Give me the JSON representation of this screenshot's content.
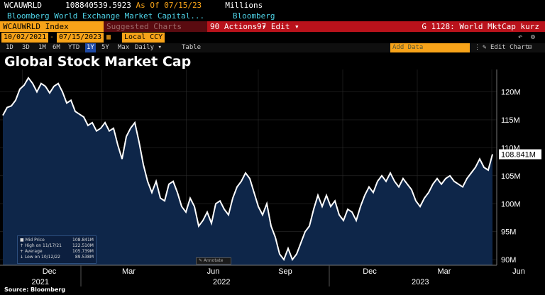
{
  "header": {
    "ticker": "WCAUWRLD",
    "price": "108840539.5923",
    "as_of_label": "As Of",
    "as_of_date": "07/15/23",
    "unit": "Millions",
    "description": "Bloomberg World Exchange Market Capital...",
    "source": "Bloomberg"
  },
  "toolbar": {
    "security": "WCAUWRLD Index",
    "suggested": "Suggested Charts",
    "actions": "90 Actions ▾",
    "edit": "97 Edit ▾",
    "function": "G 1128: World MktCap kurz",
    "start_date": "10/02/2021",
    "end_date": "07/15/2023",
    "currency": "Local CCY",
    "ranges": [
      "1D",
      "3D",
      "1M",
      "6M",
      "YTD",
      "1Y",
      "5Y",
      "Max"
    ],
    "selected_range": "1Y",
    "frequency": "Daily ▾",
    "table": "Table",
    "add_data": "Add Data",
    "edit_chart": "Edit Chart"
  },
  "title": "Global Stock Market Cap",
  "source_note": "Source: Bloomberg",
  "legend": {
    "mid_price_label": "Mid Price",
    "mid_price": "108.841M",
    "high_label": "High on 11/17/21",
    "high": "122.510M",
    "avg_label": "Average",
    "avg": "105.739M",
    "low_label": "Low on 10/12/22",
    "low": "89.538M"
  },
  "annotate": "Annotate",
  "colors": {
    "area": "#0e2649",
    "line": "#ffffff",
    "accent": "#f7a319",
    "grid": "#333333"
  },
  "chart_data": {
    "type": "area",
    "ylim": [
      89,
      124
    ],
    "yticks": [
      "120M",
      "115M",
      "110M",
      "105M",
      "100M",
      "95M",
      "90M"
    ],
    "ytick_values": [
      120,
      115,
      110,
      105,
      100,
      95,
      90
    ],
    "last_label": "108.841M",
    "last_value": 108.841,
    "xticks": [
      "Dec",
      "Mar",
      "Jun",
      "Sep",
      "Dec",
      "Mar",
      "Jun"
    ],
    "xtick_t": [
      0.045,
      0.205,
      0.375,
      0.52,
      0.69,
      0.84,
      0.99
    ],
    "year_labels": [
      "2021",
      "2022",
      "2023"
    ],
    "year_t": [
      0.035,
      0.4,
      0.8
    ],
    "series": [
      {
        "values": [
          115.8,
          117.2,
          117.5,
          118.5,
          120.5,
          121.2,
          122.5,
          121.5,
          120.0,
          121.5,
          121.0,
          119.8,
          121.0,
          121.5,
          120.0,
          118.0,
          118.5,
          116.5,
          116.0,
          115.5,
          114.0,
          114.5,
          113.0,
          113.5,
          114.5,
          113.0,
          113.5,
          110.5,
          108.0,
          112.0,
          113.5,
          114.5,
          111.0,
          107.0,
          104.0,
          102.0,
          104.0,
          101.0,
          100.5,
          103.5,
          104.0,
          102.0,
          99.5,
          98.5,
          101.0,
          99.5,
          96.0,
          97.0,
          98.5,
          96.5,
          100.0,
          100.5,
          99.0,
          98.0,
          101.0,
          103.0,
          104.0,
          105.5,
          104.5,
          102.0,
          99.5,
          98.0,
          100.0,
          96.0,
          94.0,
          91.0,
          90.0,
          92.0,
          90.0,
          91.0,
          93.0,
          95.0,
          96.0,
          99.0,
          101.5,
          99.5,
          101.5,
          99.5,
          100.5,
          98.0,
          97.0,
          99.0,
          98.5,
          97.0,
          99.5,
          101.5,
          103.0,
          102.0,
          104.0,
          105.0,
          104.0,
          105.5,
          104.0,
          103.0,
          104.5,
          103.5,
          102.5,
          100.5,
          99.5,
          101.0,
          102.0,
          103.5,
          104.5,
          103.5,
          104.5,
          105.0,
          104.0,
          103.5,
          103.0,
          104.5,
          105.5,
          106.5,
          108.0,
          106.5,
          106.0,
          108.841
        ]
      }
    ]
  }
}
